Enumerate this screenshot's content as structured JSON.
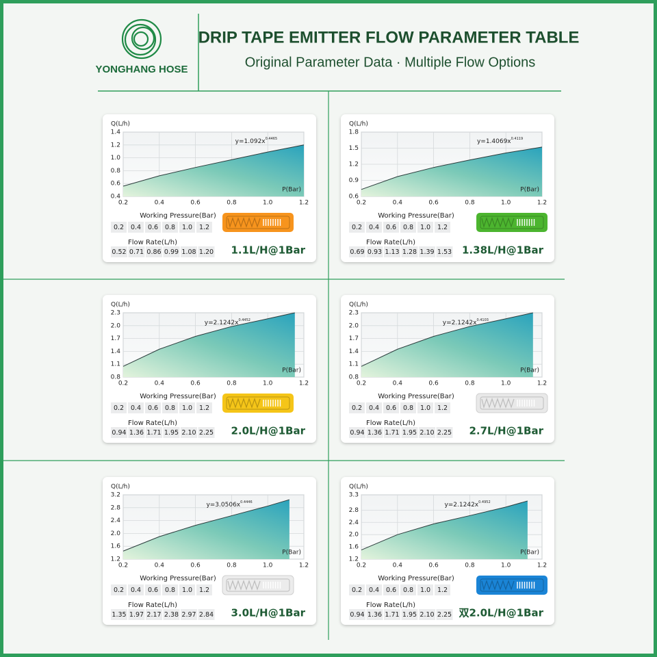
{
  "header": {
    "brand": "YONGHANG HOSE",
    "title": "DRIP TAPE EMITTER FLOW PARAMETER TABLE",
    "subtitle": "Original Parameter Data · Multiple Flow Options"
  },
  "chart_data": [
    {
      "type": "area",
      "ylabel": "Q(L/h)",
      "xlabel": "P(Bar)",
      "equation": "y=1.092x",
      "equation_exponent": "0.4465",
      "x": [
        0.2,
        0.4,
        0.6,
        0.8,
        1.0,
        1.2
      ],
      "values": [
        0.56,
        0.72,
        0.85,
        0.97,
        1.09,
        1.2
      ],
      "xlim": [
        0.2,
        1.2
      ],
      "ylim": [
        0.4,
        1.4
      ],
      "xticks": [
        0.2,
        0.4,
        0.6,
        0.8,
        {
          "value": 1,
          "label": "1.0"
        },
        1.2
      ],
      "yticks": [
        0.4,
        0.6,
        0.8,
        {
          "value": 1,
          "label": "1.0"
        },
        1.2,
        1.4
      ],
      "grid": true,
      "table": {
        "pressure_label": "Working Pressure(Bar)",
        "pressure": [
          "0.2",
          "0.4",
          "0.6",
          "0.8",
          "1.0",
          "1.2"
        ],
        "flow_label": "Flow Rate(L/h)",
        "flow": [
          "0.52",
          "0.71",
          "0.86",
          "0.99",
          "1.08",
          "1.20"
        ]
      },
      "rating": "1.1L/H@1Bar",
      "emitter_color": "#f7941d"
    },
    {
      "type": "area",
      "ylabel": "Q(L/h)",
      "xlabel": "P(Bar)",
      "equation": "y=1.4069x",
      "equation_exponent": "0.4119",
      "x": [
        0.2,
        0.4,
        0.6,
        0.8,
        1.0,
        1.2
      ],
      "values": [
        0.73,
        0.97,
        1.14,
        1.28,
        1.41,
        1.52
      ],
      "xlim": [
        0.2,
        1.2
      ],
      "ylim": [
        0.6,
        1.8
      ],
      "xticks": [
        0.2,
        0.4,
        0.6,
        0.8,
        {
          "value": 1,
          "label": "1.0"
        },
        1.2
      ],
      "yticks": [
        0.6,
        0.9,
        1.2,
        1.5,
        1.8
      ],
      "grid": true,
      "table": {
        "pressure_label": "Working Pressure(Bar)",
        "pressure": [
          "0.2",
          "0.4",
          "0.6",
          "0.8",
          "1.0",
          "1.2"
        ],
        "flow_label": "Flow Rate(L/h)",
        "flow": [
          "0.69",
          "0.93",
          "1.13",
          "1.28",
          "1.39",
          "1.53"
        ]
      },
      "rating": "1.38L/H@1Bar",
      "emitter_color": "#4cb52f"
    },
    {
      "type": "area",
      "ylabel": "Q(L/h)",
      "xlabel": "P(Bar)",
      "equation": "y=2.1242x",
      "equation_exponent": "0.4452",
      "x": [
        0.2,
        0.4,
        0.6,
        0.8,
        1.0,
        1.15
      ],
      "values": [
        1.05,
        1.45,
        1.75,
        1.98,
        2.16,
        2.3
      ],
      "xlim": [
        0.2,
        1.2
      ],
      "ylim": [
        0.8,
        2.3
      ],
      "xticks": [
        0.2,
        0.4,
        0.6,
        0.8,
        {
          "value": 1,
          "label": "1.0"
        },
        1.2
      ],
      "yticks": [
        0.8,
        1.1,
        1.4,
        1.7,
        {
          "value": 2,
          "label": "2.0"
        },
        2.3
      ],
      "grid": true,
      "table": {
        "pressure_label": "Working Pressure(Bar)",
        "pressure": [
          "0.2",
          "0.4",
          "0.6",
          "0.8",
          "1.0",
          "1.2"
        ],
        "flow_label": "Flow Rate(L/h)",
        "flow": [
          "0.94",
          "1.36",
          "1.71",
          "1.95",
          "2.10",
          "2.25"
        ]
      },
      "rating": "2.0L/H@1Bar",
      "emitter_color": "#f5c518"
    },
    {
      "type": "area",
      "ylabel": "Q(L/h)",
      "xlabel": "P(Bar)",
      "equation": "y=2.1242x",
      "equation_exponent": "0.4103",
      "x": [
        0.2,
        0.4,
        0.6,
        0.8,
        1.0,
        1.15
      ],
      "values": [
        1.05,
        1.45,
        1.75,
        1.98,
        2.16,
        2.3
      ],
      "xlim": [
        0.2,
        1.2
      ],
      "ylim": [
        0.8,
        2.3
      ],
      "xticks": [
        0.2,
        0.4,
        0.6,
        0.8,
        {
          "value": 1,
          "label": "1.0"
        },
        1.2
      ],
      "yticks": [
        0.8,
        1.1,
        1.4,
        1.7,
        {
          "value": 2,
          "label": "2.0"
        },
        2.3
      ],
      "grid": true,
      "table": {
        "pressure_label": "Working Pressure(Bar)",
        "pressure": [
          "0.2",
          "0.4",
          "0.6",
          "0.8",
          "1.0",
          "1.2"
        ],
        "flow_label": "Flow Rate(L/h)",
        "flow": [
          "0.94",
          "1.36",
          "1.71",
          "1.95",
          "2.10",
          "2.25"
        ]
      },
      "rating": "2.7L/H@1Bar",
      "emitter_color": "#e9e9e9"
    },
    {
      "type": "area",
      "ylabel": "Q(L/h)",
      "xlabel": "P(Bar)",
      "equation": "y=3.0506x",
      "equation_exponent": "0.4446",
      "x": [
        0.2,
        0.4,
        0.6,
        0.8,
        1.0,
        1.12
      ],
      "values": [
        1.45,
        1.9,
        2.25,
        2.55,
        2.85,
        3.05
      ],
      "xlim": [
        0.2,
        1.2
      ],
      "ylim": [
        1.2,
        3.2
      ],
      "xticks": [
        0.2,
        0.4,
        0.6,
        0.8,
        {
          "value": 1,
          "label": "1.0"
        },
        1.2
      ],
      "yticks": [
        1.2,
        1.6,
        {
          "value": 2,
          "label": "2.0"
        },
        2.4,
        2.8,
        3.2
      ],
      "grid": true,
      "table": {
        "pressure_label": "Working Pressure(Bar)",
        "pressure": [
          "0.2",
          "0.4",
          "0.6",
          "0.8",
          "1.0",
          "1.2"
        ],
        "flow_label": "Flow Rate(L/h)",
        "flow": [
          "1.35",
          "1.97",
          "2.17",
          "2.38",
          "2.97",
          "2.84"
        ]
      },
      "rating": "3.0L/H@1Bar",
      "emitter_color": "#ececec"
    },
    {
      "type": "area",
      "ylabel": "Q(L/h)",
      "xlabel": "P(Bar)",
      "equation": "y=2.1242x",
      "equation_exponent": "0.4952",
      "x": [
        0.2,
        0.4,
        0.6,
        0.8,
        1.0,
        1.12
      ],
      "values": [
        1.5,
        2.0,
        2.35,
        2.62,
        2.9,
        3.1
      ],
      "xlim": [
        0.2,
        1.2
      ],
      "ylim": [
        1.2,
        3.3
      ],
      "xticks": [
        0.2,
        0.4,
        0.6,
        0.8,
        {
          "value": 1,
          "label": "1.0"
        },
        1.2
      ],
      "yticks": [
        1.2,
        1.6,
        {
          "value": 2,
          "label": "2.0"
        },
        2.4,
        2.8,
        3.3
      ],
      "grid": true,
      "table": {
        "pressure_label": "Working Pressure(Bar)",
        "pressure": [
          "0.2",
          "0.4",
          "0.6",
          "0.8",
          "1.0",
          "1.2"
        ],
        "flow_label": "Flow Rate(L/h)",
        "flow": [
          "0.94",
          "1.36",
          "1.71",
          "1.95",
          "2.10",
          "2.25"
        ]
      },
      "rating": "双2.0L/H@1Bar",
      "emitter_color": "#1a84d6"
    }
  ]
}
